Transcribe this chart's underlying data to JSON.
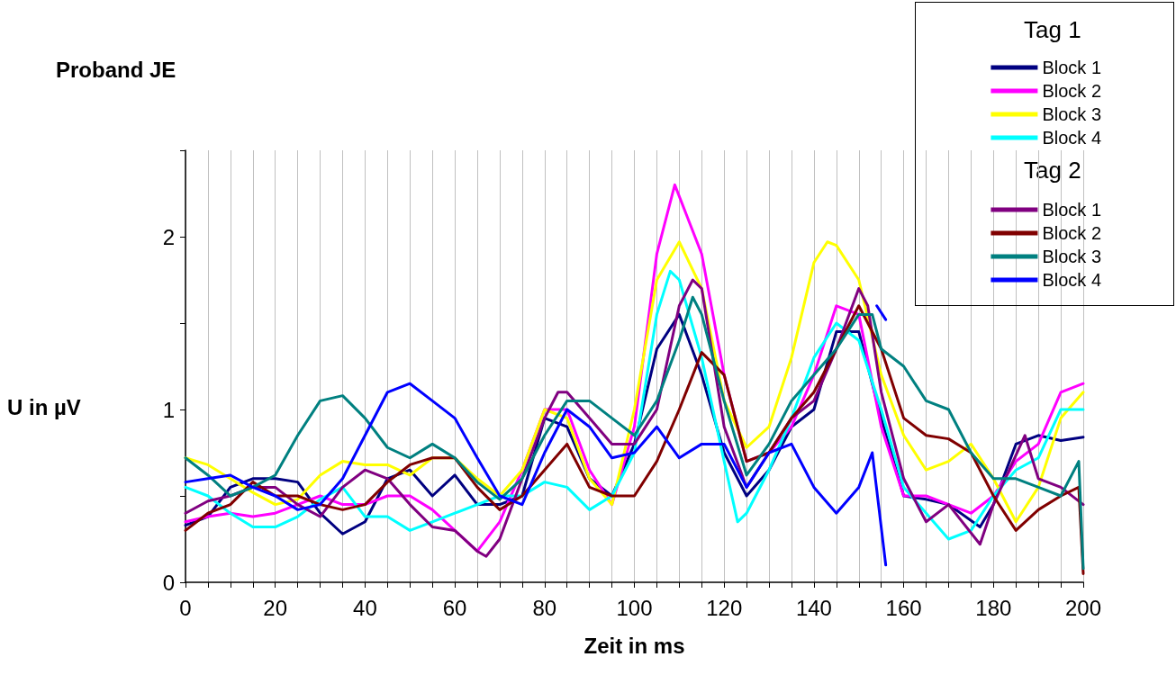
{
  "chart_data": {
    "type": "line",
    "title": "Proband JE",
    "xlabel": "Zeit in ms",
    "ylabel": "U in µV",
    "legend_title": "Tag 1",
    "annotations": [
      "Tag 2"
    ],
    "xlim": [
      0,
      200
    ],
    "ylim": [
      0,
      2.5
    ],
    "xticks": [
      0,
      {
        "value": 5,
        "label": null
      },
      {
        "value": 10,
        "label": null
      },
      {
        "value": 15,
        "label": null
      },
      20,
      {
        "value": 25,
        "label": null
      },
      {
        "value": 30,
        "label": null
      },
      {
        "value": 35,
        "label": null
      },
      40,
      {
        "value": 45,
        "label": null
      },
      {
        "value": 50,
        "label": null
      },
      {
        "value": 55,
        "label": null
      },
      60,
      {
        "value": 65,
        "label": null
      },
      {
        "value": 70,
        "label": null
      },
      {
        "value": 75,
        "label": null
      },
      80,
      {
        "value": 85,
        "label": null
      },
      {
        "value": 90,
        "label": null
      },
      {
        "value": 95,
        "label": null
      },
      100,
      {
        "value": 105,
        "label": null
      },
      {
        "value": 110,
        "label": null
      },
      {
        "value": 115,
        "label": null
      },
      120,
      {
        "value": 125,
        "label": null
      },
      {
        "value": 130,
        "label": null
      },
      {
        "value": 135,
        "label": null
      },
      140,
      {
        "value": 145,
        "label": null
      },
      {
        "value": 150,
        "label": null
      },
      {
        "value": 155,
        "label": null
      },
      160,
      {
        "value": 165,
        "label": null
      },
      {
        "value": 170,
        "label": null
      },
      {
        "value": 175,
        "label": null
      },
      180,
      {
        "value": 185,
        "label": null
      },
      {
        "value": 190,
        "label": null
      },
      {
        "value": 195,
        "label": null
      },
      200
    ],
    "yticks": [
      0,
      {
        "value": 0.5,
        "label": null
      },
      1,
      {
        "value": 1.5,
        "label": null
      },
      2,
      {
        "value": 2.5,
        "label": null
      }
    ],
    "grid": "x",
    "legend": "top right",
    "marker": "none",
    "line_style": "solid",
    "series": [
      {
        "name": "Block 1",
        "color": "#000080",
        "x": [
          0,
          5,
          10,
          15,
          20,
          25,
          30,
          35,
          40,
          45,
          50,
          55,
          60,
          65,
          70,
          75,
          80,
          85,
          90,
          95,
          100,
          105,
          110,
          115,
          120,
          125,
          130,
          135,
          140,
          145,
          150,
          155,
          160,
          165,
          170,
          177,
          180,
          185,
          190,
          195,
          200
        ],
        "values": [
          0.33,
          0.38,
          0.55,
          0.6,
          0.6,
          0.58,
          0.4,
          0.28,
          0.35,
          0.6,
          0.65,
          0.5,
          0.62,
          0.45,
          0.45,
          0.5,
          0.95,
          0.9,
          0.6,
          0.5,
          0.8,
          1.35,
          1.55,
          1.2,
          0.75,
          0.5,
          0.65,
          0.9,
          1.0,
          1.45,
          1.45,
          0.95,
          0.5,
          0.48,
          0.45,
          0.32,
          0.45,
          0.8,
          0.85,
          0.82,
          0.84
        ]
      },
      {
        "name": "Block 2",
        "color": "#ff00ff",
        "x": [
          0,
          5,
          10,
          15,
          20,
          25,
          30,
          35,
          40,
          45,
          50,
          55,
          60,
          65,
          70,
          75,
          80,
          85,
          90,
          95,
          100,
          105,
          109,
          115,
          120,
          125,
          130,
          135,
          140,
          145,
          150,
          155,
          160,
          165,
          170,
          175,
          180,
          185,
          190,
          195,
          200
        ],
        "values": [
          0.35,
          0.38,
          0.4,
          0.38,
          0.4,
          0.45,
          0.5,
          0.45,
          0.45,
          0.5,
          0.5,
          0.42,
          0.3,
          0.18,
          0.35,
          0.65,
          1.0,
          1.0,
          0.65,
          0.45,
          0.9,
          1.9,
          2.3,
          1.9,
          1.2,
          0.7,
          0.75,
          0.9,
          1.2,
          1.6,
          1.55,
          0.9,
          0.5,
          0.5,
          0.45,
          0.4,
          0.5,
          0.7,
          0.8,
          1.1,
          1.15
        ]
      },
      {
        "name": "Block 3",
        "color": "#ffff00",
        "x": [
          0,
          5,
          10,
          15,
          20,
          25,
          30,
          35,
          40,
          45,
          50,
          55,
          60,
          65,
          70,
          75,
          80,
          85,
          90,
          95,
          100,
          105,
          110,
          115,
          120,
          125,
          130,
          135,
          140,
          143,
          145,
          150,
          155,
          160,
          165,
          170,
          175,
          180,
          185,
          190,
          195,
          200
        ],
        "values": [
          0.72,
          0.68,
          0.6,
          0.52,
          0.45,
          0.48,
          0.62,
          0.7,
          0.68,
          0.68,
          0.62,
          0.72,
          0.72,
          0.6,
          0.5,
          0.65,
          1.0,
          0.95,
          0.6,
          0.45,
          1.0,
          1.75,
          1.97,
          1.7,
          1.05,
          0.78,
          0.9,
          1.3,
          1.85,
          1.97,
          1.95,
          1.75,
          1.2,
          0.85,
          0.65,
          0.7,
          0.8,
          0.6,
          0.35,
          0.55,
          0.95,
          1.1
        ]
      },
      {
        "name": "Block 4",
        "color": "#00ffff",
        "x": [
          0,
          5,
          10,
          15,
          20,
          25,
          30,
          35,
          40,
          45,
          50,
          55,
          60,
          65,
          70,
          75,
          80,
          85,
          90,
          95,
          100,
          105,
          108,
          110,
          115,
          120,
          123,
          125,
          130,
          135,
          140,
          145,
          150,
          155,
          160,
          165,
          170,
          175,
          180,
          185,
          190,
          195,
          200
        ],
        "values": [
          0.55,
          0.5,
          0.4,
          0.32,
          0.32,
          0.38,
          0.48,
          0.55,
          0.38,
          0.38,
          0.3,
          0.35,
          0.4,
          0.45,
          0.5,
          0.5,
          0.58,
          0.55,
          0.42,
          0.5,
          0.75,
          1.55,
          1.8,
          1.75,
          1.3,
          0.7,
          0.35,
          0.4,
          0.65,
          0.95,
          1.3,
          1.5,
          1.4,
          1.0,
          0.55,
          0.4,
          0.25,
          0.3,
          0.5,
          0.65,
          0.72,
          1.0,
          1.0
        ]
      },
      {
        "name": "Block 1",
        "color": "#800080",
        "x": [
          0,
          5,
          10,
          15,
          20,
          25,
          30,
          35,
          40,
          45,
          50,
          55,
          60,
          65,
          67,
          70,
          75,
          80,
          83,
          85,
          90,
          95,
          100,
          105,
          110,
          113,
          115,
          120,
          125,
          130,
          135,
          140,
          145,
          150,
          152,
          155,
          160,
          165,
          170,
          177,
          180,
          187,
          190,
          195,
          200
        ],
        "values": [
          0.4,
          0.47,
          0.5,
          0.55,
          0.55,
          0.45,
          0.38,
          0.55,
          0.65,
          0.6,
          0.45,
          0.32,
          0.3,
          0.18,
          0.15,
          0.25,
          0.6,
          0.95,
          1.1,
          1.1,
          0.95,
          0.8,
          0.8,
          1.0,
          1.6,
          1.75,
          1.7,
          0.9,
          0.55,
          0.75,
          0.95,
          1.05,
          1.35,
          1.7,
          1.6,
          1.1,
          0.6,
          0.35,
          0.45,
          0.22,
          0.45,
          0.85,
          0.6,
          0.55,
          0.45
        ]
      },
      {
        "name": "Block 2",
        "color": "#800000",
        "x": [
          0,
          5,
          10,
          15,
          20,
          25,
          30,
          35,
          40,
          45,
          50,
          55,
          60,
          65,
          70,
          75,
          80,
          85,
          90,
          95,
          100,
          105,
          110,
          115,
          120,
          125,
          130,
          135,
          140,
          145,
          150,
          155,
          160,
          165,
          170,
          175,
          180,
          185,
          190,
          195,
          199,
          200
        ],
        "values": [
          0.3,
          0.4,
          0.45,
          0.58,
          0.5,
          0.5,
          0.45,
          0.42,
          0.45,
          0.58,
          0.68,
          0.72,
          0.72,
          0.55,
          0.42,
          0.5,
          0.65,
          0.8,
          0.55,
          0.5,
          0.5,
          0.7,
          1.0,
          1.33,
          1.2,
          0.7,
          0.75,
          0.95,
          1.1,
          1.35,
          1.6,
          1.35,
          0.95,
          0.85,
          0.83,
          0.75,
          0.5,
          0.3,
          0.42,
          0.5,
          0.55,
          0.05
        ]
      },
      {
        "name": "Block 3",
        "color": "#008080",
        "x": [
          0,
          5,
          10,
          15,
          20,
          25,
          30,
          35,
          40,
          45,
          50,
          55,
          60,
          65,
          70,
          75,
          80,
          85,
          90,
          95,
          100,
          105,
          110,
          113,
          115,
          120,
          125,
          130,
          135,
          140,
          145,
          150,
          153,
          155,
          160,
          165,
          170,
          175,
          180,
          185,
          190,
          195,
          199,
          200
        ],
        "values": [
          0.72,
          0.62,
          0.5,
          0.55,
          0.62,
          0.85,
          1.05,
          1.08,
          0.95,
          0.78,
          0.72,
          0.8,
          0.72,
          0.58,
          0.48,
          0.6,
          0.85,
          1.05,
          1.05,
          0.95,
          0.85,
          1.05,
          1.4,
          1.65,
          1.55,
          1.05,
          0.62,
          0.8,
          1.05,
          1.2,
          1.35,
          1.55,
          1.55,
          1.35,
          1.25,
          1.05,
          1.0,
          0.75,
          0.6,
          0.6,
          0.55,
          0.5,
          0.7,
          0.08
        ]
      },
      {
        "name": "Block 4",
        "color": "#0000ff",
        "x": [
          0,
          5,
          10,
          15,
          20,
          25,
          30,
          35,
          40,
          45,
          50,
          55,
          60,
          65,
          70,
          75,
          80,
          85,
          90,
          95,
          100,
          105,
          110,
          115,
          120,
          125,
          130,
          135,
          140,
          145,
          150,
          153,
          156,
          155,
          154,
          156
        ],
        "values": [
          0.58,
          0.6,
          0.62,
          0.55,
          0.5,
          0.42,
          0.45,
          0.6,
          0.85,
          1.1,
          1.15,
          1.05,
          0.95,
          0.72,
          0.5,
          0.45,
          0.75,
          1.0,
          0.9,
          0.72,
          0.75,
          0.9,
          0.72,
          0.8,
          0.8,
          0.55,
          0.75,
          0.8,
          0.55,
          0.4,
          0.55,
          0.75,
          0.1,
          null,
          1.6,
          1.52
        ]
      }
    ]
  }
}
